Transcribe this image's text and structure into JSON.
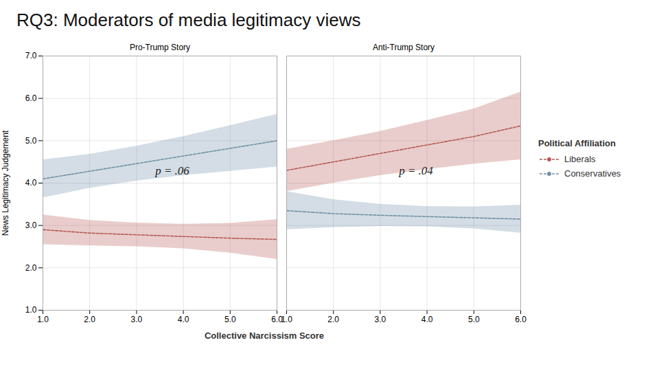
{
  "chart_data": {
    "type": "line",
    "title": "RQ3: Moderators of media legitimacy views",
    "xlabel": "Collective Narcissism Score",
    "ylabel": "News Legitimacy Judgement",
    "legend_title": "Political Affiliation",
    "legend": "right",
    "grid": true,
    "line_style": "dashed",
    "xlim": [
      1,
      6
    ],
    "xticks": [
      1,
      2,
      3,
      4,
      5,
      6
    ],
    "ylim": [
      1,
      7
    ],
    "yticks": [
      1,
      2,
      3,
      4,
      5,
      6,
      7
    ],
    "panels": [
      {
        "title": "Pro-Trump Story",
        "annotation": "p = .06",
        "x": [
          1,
          2,
          3,
          4,
          5,
          6
        ],
        "series": [
          {
            "name": "Liberals",
            "color": "#b55a55",
            "values": [
              2.9,
              2.82,
              2.78,
              2.74,
              2.7,
              2.67
            ],
            "lo": [
              2.55,
              2.52,
              2.5,
              2.45,
              2.35,
              2.2
            ],
            "hi": [
              3.25,
              3.12,
              3.06,
              3.03,
              3.05,
              3.14
            ]
          },
          {
            "name": "Conservatives",
            "color": "#7090a8",
            "values": [
              4.1,
              4.28,
              4.46,
              4.64,
              4.82,
              5.0
            ],
            "lo": [
              3.65,
              3.88,
              4.05,
              4.18,
              4.28,
              4.38
            ],
            "hi": [
              4.55,
              4.68,
              4.87,
              5.1,
              5.36,
              5.62
            ]
          }
        ]
      },
      {
        "title": "Anti-Trump Story",
        "annotation": "p = .04",
        "x": [
          1,
          2,
          3,
          4,
          5,
          6
        ],
        "series": [
          {
            "name": "Liberals",
            "color": "#b55a55",
            "values": [
              4.3,
              4.5,
              4.7,
              4.9,
              5.1,
              5.35
            ],
            "lo": [
              3.8,
              4.0,
              4.18,
              4.32,
              4.45,
              4.55
            ],
            "hi": [
              4.8,
              5.0,
              5.22,
              5.48,
              5.75,
              6.15
            ]
          },
          {
            "name": "Conservatives",
            "color": "#7090a8",
            "values": [
              3.35,
              3.28,
              3.24,
              3.21,
              3.18,
              3.15
            ],
            "lo": [
              2.9,
              2.95,
              2.98,
              2.97,
              2.92,
              2.82
            ],
            "hi": [
              3.8,
              3.61,
              3.5,
              3.45,
              3.44,
              3.48
            ]
          }
        ]
      }
    ]
  }
}
